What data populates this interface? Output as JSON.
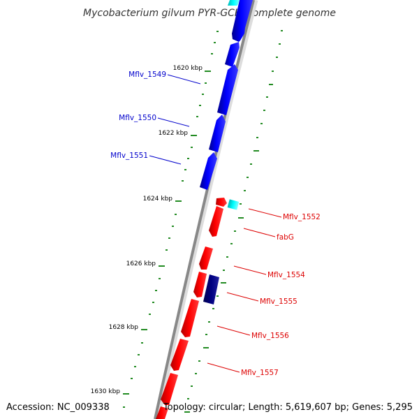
{
  "title": "Mycobacterium gilvum PYR-GCK, complete genome",
  "accession": "Accession: NC_009338",
  "topology": "Topology: circular; Length: 5,619,607 bp; Genes: 5,295",
  "ticks": [
    {
      "label": "1620 kbp"
    },
    {
      "label": "1622 kbp"
    },
    {
      "label": "1624 kbp"
    },
    {
      "label": "1626 kbp"
    },
    {
      "label": "1628 kbp"
    },
    {
      "label": "1630 kbp"
    }
  ],
  "genes": [
    {
      "name": "Mflv_1549",
      "strand": "forward",
      "color": "#0000ff"
    },
    {
      "name": "Mflv_1550",
      "strand": "forward",
      "color": "#0000ff"
    },
    {
      "name": "Mflv_1551",
      "strand": "forward",
      "color": "#0000ff"
    },
    {
      "name": "Mflv_1552",
      "strand": "reverse",
      "color": "#ff0000"
    },
    {
      "name": "fabG",
      "strand": "reverse",
      "color": "#ff0000"
    },
    {
      "name": "Mflv_1554",
      "strand": "reverse",
      "color": "#ff0000"
    },
    {
      "name": "Mflv_1555",
      "strand": "reverse",
      "color": "#ff0000"
    },
    {
      "name": "Mflv_1556",
      "strand": "reverse",
      "color": "#ff0000"
    },
    {
      "name": "Mflv_1557",
      "strand": "reverse",
      "color": "#ff0000"
    }
  ],
  "colors": {
    "forward_cds": "#0000ff",
    "reverse_cds": "#ff0000",
    "trna": "#00ffff",
    "dark_cds": "#000080",
    "gc_skew": "#228b22",
    "backbone": "#888888"
  }
}
